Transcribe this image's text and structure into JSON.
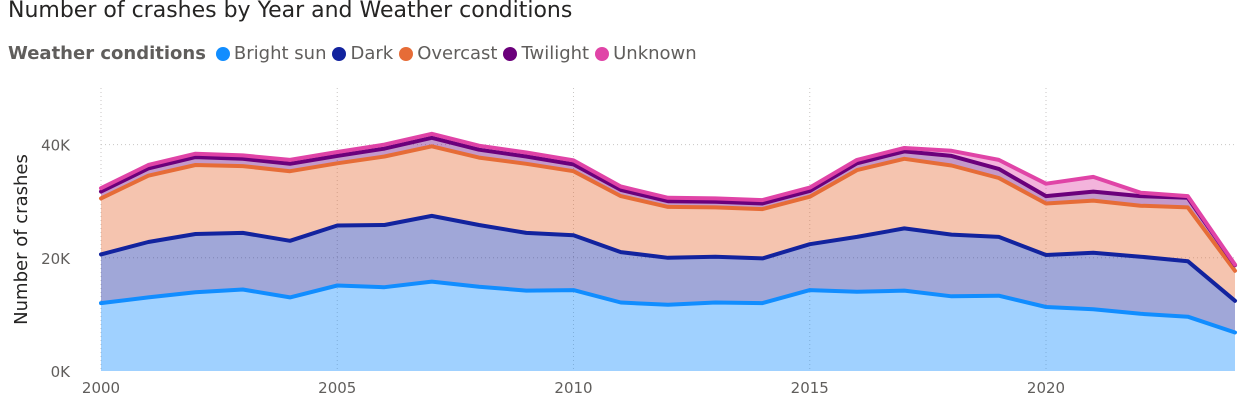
{
  "title": "Number of crashes by Year and Weather conditions",
  "legend": {
    "title": "Weather conditions",
    "items": [
      {
        "label": "Bright sun",
        "color": "#118dff"
      },
      {
        "label": "Dark",
        "color": "#12239e"
      },
      {
        "label": "Overcast",
        "color": "#e66c37"
      },
      {
        "label": "Twilight",
        "color": "#6b007b"
      },
      {
        "label": "Unknown",
        "color": "#e044a7"
      }
    ]
  },
  "chart_data": {
    "type": "area",
    "stacked": true,
    "title": "Number of crashes by Year and Weather conditions",
    "xlabel": "",
    "ylabel": "Number of crashes",
    "x": [
      2000,
      2001,
      2002,
      2003,
      2004,
      2005,
      2006,
      2007,
      2008,
      2009,
      2010,
      2011,
      2012,
      2013,
      2014,
      2015,
      2016,
      2017,
      2018,
      2019,
      2020,
      2021,
      2022,
      2023,
      2024
    ],
    "x_ticks": [
      "2000",
      "2005",
      "2010",
      "2015",
      "2020"
    ],
    "y_ticks": [
      "0K",
      "20K",
      "40K"
    ],
    "ylim": [
      0,
      50000
    ],
    "grid": true,
    "series": [
      {
        "name": "Bright sun",
        "color": "#118dff",
        "values": [
          12000,
          13000,
          13900,
          14400,
          13000,
          15100,
          14800,
          15800,
          14900,
          14200,
          14300,
          12100,
          11700,
          12100,
          12000,
          14300,
          14000,
          14200,
          13200,
          13300,
          11300,
          10900,
          10100,
          9600,
          6800
        ]
      },
      {
        "name": "Dark",
        "color": "#12239e",
        "values": [
          8600,
          9800,
          10300,
          10000,
          10000,
          10600,
          11000,
          11600,
          10900,
          10200,
          9700,
          8900,
          8300,
          8100,
          7900,
          8100,
          9700,
          11000,
          10900,
          10400,
          9200,
          10000,
          10100,
          9800,
          5600
        ]
      },
      {
        "name": "Overcast",
        "color": "#e66c37",
        "values": [
          9900,
          11700,
          12200,
          11800,
          12300,
          11000,
          12100,
          12300,
          11900,
          12200,
          11300,
          9900,
          9000,
          8700,
          8700,
          8400,
          11800,
          12300,
          12200,
          10400,
          9100,
          9200,
          9000,
          9500,
          5300
        ]
      },
      {
        "name": "Twilight",
        "color": "#6b007b",
        "values": [
          1200,
          1300,
          1400,
          1300,
          1300,
          1300,
          1400,
          1500,
          1400,
          1300,
          1200,
          1100,
          1000,
          1000,
          1000,
          1000,
          1200,
          1300,
          1700,
          1600,
          1300,
          1600,
          1700,
          1700,
          1000
        ]
      },
      {
        "name": "Unknown",
        "color": "#e044a7",
        "values": [
          600,
          600,
          600,
          600,
          700,
          700,
          700,
          700,
          700,
          700,
          700,
          600,
          600,
          600,
          600,
          600,
          600,
          600,
          900,
          1600,
          2200,
          2600,
          600,
          300,
          100
        ]
      }
    ]
  }
}
